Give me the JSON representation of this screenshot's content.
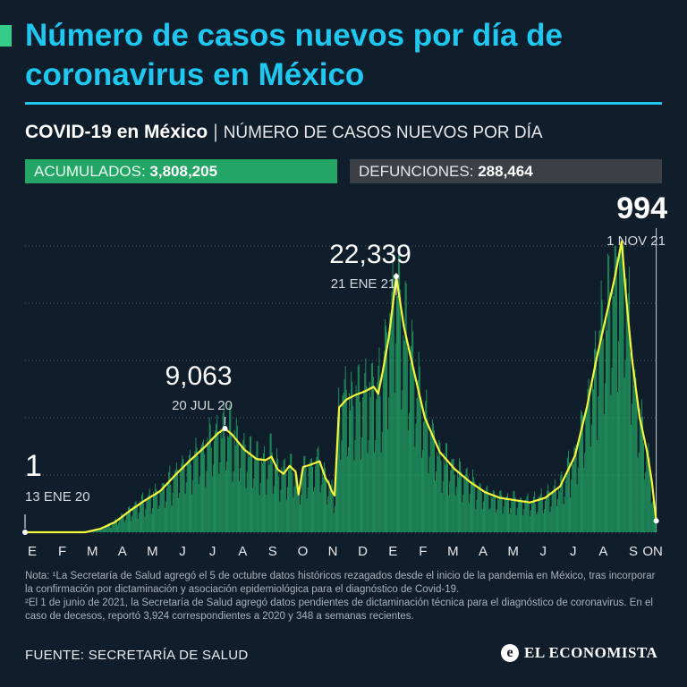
{
  "header": {
    "title": "Número de casos nuevos por día de coronavirus en México",
    "subtitle_bold": "COVID-19 en México",
    "subtitle_separator": "|",
    "subtitle_light": "NÚMERO DE CASOS NUEVOS POR DÍA"
  },
  "stats": {
    "acumulados_label": "ACUMULADOS:",
    "acumulados_value": "3,808,205",
    "defunciones_label": "DEFUNCIONES:",
    "defunciones_value": "288,464"
  },
  "chart_data": {
    "type": "bar",
    "overlay": "line (moving average)",
    "xlabels": [
      "E",
      "F",
      "M",
      "A",
      "M",
      "J",
      "J",
      "A",
      "S",
      "O",
      "N",
      "D",
      "E",
      "F",
      "M",
      "A",
      "M",
      "J",
      "J",
      "A",
      "S",
      "ON"
    ],
    "ylim": [
      0,
      25000
    ],
    "grid": true,
    "colors": {
      "bars": "#23a565",
      "line": "#f5f53c",
      "grid": "#58646f"
    },
    "annotations": [
      {
        "value_label": "1",
        "date_label": "13 ENE 20",
        "month_index": 0.0,
        "value": 1
      },
      {
        "value_label": "9,063",
        "date_label": "20 JUL 20",
        "month_index": 6.65,
        "value": 9063
      },
      {
        "value_label": "22,339",
        "date_label": "21 ENE 21",
        "month_index": 12.35,
        "value": 22339
      },
      {
        "value_label": "994",
        "date_label": "1 NOV 21",
        "month_index": 21.0,
        "value": 994
      }
    ],
    "smoothed_series": [
      [
        0.0,
        0
      ],
      [
        2.0,
        0
      ],
      [
        2.5,
        300
      ],
      [
        3.0,
        900
      ],
      [
        3.5,
        1900
      ],
      [
        4.0,
        2800
      ],
      [
        4.5,
        3600
      ],
      [
        5.0,
        5000
      ],
      [
        5.5,
        6300
      ],
      [
        6.0,
        7500
      ],
      [
        6.4,
        8600
      ],
      [
        6.65,
        9063
      ],
      [
        6.9,
        8500
      ],
      [
        7.3,
        7200
      ],
      [
        7.7,
        6400
      ],
      [
        8.0,
        6300
      ],
      [
        8.2,
        6600
      ],
      [
        8.4,
        5500
      ],
      [
        8.6,
        5100
      ],
      [
        8.8,
        5800
      ],
      [
        9.0,
        5300
      ],
      [
        9.1,
        3300
      ],
      [
        9.25,
        5700
      ],
      [
        9.5,
        5900
      ],
      [
        9.8,
        6200
      ],
      [
        10.0,
        4700
      ],
      [
        10.1,
        4300
      ],
      [
        10.2,
        3600
      ],
      [
        10.3,
        3200
      ],
      [
        10.45,
        10900
      ],
      [
        10.7,
        11600
      ],
      [
        11.0,
        12000
      ],
      [
        11.3,
        12300
      ],
      [
        11.6,
        12700
      ],
      [
        11.75,
        12100
      ],
      [
        11.9,
        14000
      ],
      [
        12.1,
        17000
      ],
      [
        12.35,
        22339
      ],
      [
        12.6,
        18000
      ],
      [
        12.9,
        14500
      ],
      [
        13.3,
        10000
      ],
      [
        13.8,
        7000
      ],
      [
        14.3,
        5500
      ],
      [
        14.8,
        4400
      ],
      [
        15.3,
        3500
      ],
      [
        15.8,
        3000
      ],
      [
        16.3,
        2800
      ],
      [
        16.8,
        2600
      ],
      [
        17.3,
        3000
      ],
      [
        17.8,
        4000
      ],
      [
        18.3,
        6700
      ],
      [
        18.7,
        11000
      ],
      [
        19.0,
        15000
      ],
      [
        19.3,
        18500
      ],
      [
        19.6,
        22000
      ],
      [
        19.85,
        25400
      ],
      [
        20.0,
        20500
      ],
      [
        20.2,
        15000
      ],
      [
        20.45,
        10000
      ],
      [
        20.7,
        7000
      ],
      [
        20.85,
        4500
      ],
      [
        21.0,
        994
      ]
    ]
  },
  "note": {
    "line1": "Nota: ¹La Secretaría de Salud agregó el 5 de octubre datos históricos rezagados desde el inicio de la pandemia en México, tras incorporar la confirmación por dictaminación y asociación epidemiológica para el diagnóstico de Covid-19.",
    "line2": "²El 1 de junio de 2021, la Secretaría de Salud agregó datos pendientes de dictaminación técnica para el diagnóstico de coronavirus. En el caso de decesos, reportó 3,924 correspondientes a 2020 y 348 a semanas recientes."
  },
  "footer": {
    "source": "FUENTE: SECRETARÍA DE SALUD",
    "brand": "EL ECONOMISTA",
    "brand_logo": "e"
  }
}
